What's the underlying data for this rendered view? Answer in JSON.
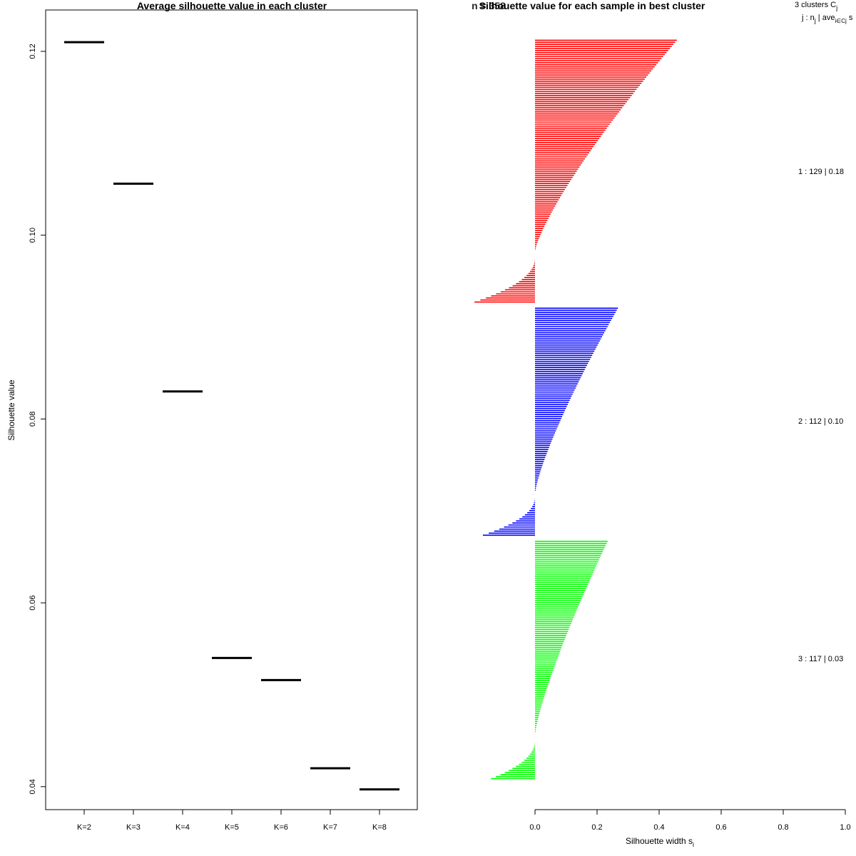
{
  "chart_data": [
    {
      "type": "line",
      "title": "Average silhouette value in each cluster",
      "xlabel": "",
      "ylabel": "Silhouette value",
      "categories": [
        "K=2",
        "K=3",
        "K=4",
        "K=5",
        "K=6",
        "K=7",
        "K=8"
      ],
      "values": [
        0.121,
        0.1056,
        0.083,
        0.054,
        0.0516,
        0.042,
        0.0397
      ],
      "yticks": [
        "0.04",
        "0.06",
        "0.08",
        "0.10",
        "0.12"
      ],
      "ylim": [
        0.0375,
        0.1245
      ],
      "grid": false,
      "mark_style": "horizontal segment per category"
    },
    {
      "type": "bar",
      "title": "Silhouette value for each sample in best cluster",
      "overlapping_title_text": "n = 358",
      "xlabel": "Silhouette width s",
      "xlabel_subscript": "i",
      "xticks": [
        "0.0",
        "0.2",
        "0.4",
        "0.6",
        "0.8",
        "1.0"
      ],
      "xlim": [
        0,
        1
      ],
      "orientation": "horizontal",
      "legend": {
        "header": "3  clusters  C",
        "header_subscript": "j",
        "subheader_a": "j :  n",
        "subheader_b": " | ave",
        "subheader_c": "i∈Cj",
        "subheader_d": "  s"
      },
      "series": [
        {
          "name": "1",
          "n": 129,
          "label": "1 :  129  |  0.18",
          "color": "#ff0000",
          "max": 0.455,
          "min": -0.195
        },
        {
          "name": "2",
          "n": 112,
          "label": "2 :  112  |  0.10",
          "color": "#0000ff",
          "max": 0.265,
          "min": -0.168
        },
        {
          "name": "3",
          "n": 117,
          "label": "3 :  117  |  0.03",
          "color": "#00ff00",
          "max": 0.232,
          "min": -0.142
        }
      ]
    }
  ]
}
